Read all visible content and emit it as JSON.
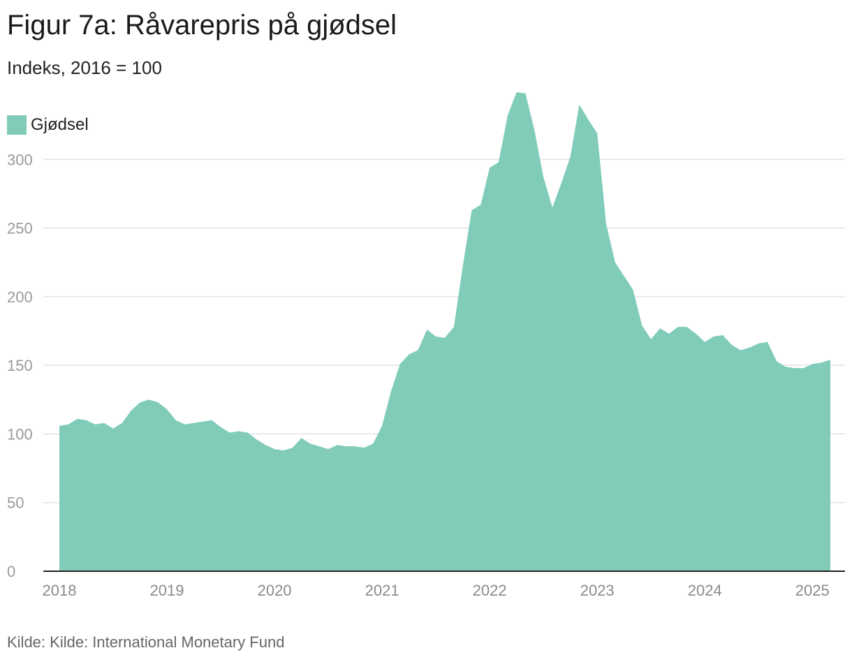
{
  "title": "Figur 7a: Råvarepris på gjødsel",
  "subtitle": "Indeks, 2016 = 100",
  "source": "Kilde: Kilde: International Monetary Fund",
  "colors": {
    "area": "#81ccb9",
    "grid": "#e2e2e2",
    "axis": "#222222",
    "tick": "#9a9a9a"
  },
  "chart_data": {
    "type": "area",
    "title": "Figur 7a: Råvarepris på gjødsel",
    "subtitle": "Indeks, 2016 = 100",
    "xlabel": "",
    "ylabel": "",
    "ylim": [
      0,
      350
    ],
    "yticks": [
      0,
      50,
      100,
      150,
      200,
      250,
      300
    ],
    "ytick_labels": [
      "0",
      "50",
      "100",
      "150",
      "200",
      "250",
      "300"
    ],
    "xlim": [
      2018.0,
      2025.33
    ],
    "xticks": [
      2018,
      2019,
      2020,
      2021,
      2022,
      2023,
      2024,
      2025
    ],
    "xtick_labels": [
      "2018",
      "2019",
      "2020",
      "2021",
      "2022",
      "2023",
      "2024",
      "2025"
    ],
    "grid": true,
    "legend_position": "top-left",
    "series": [
      {
        "name": "Gjødsel",
        "x": [
          2018.0,
          2018.083,
          2018.167,
          2018.25,
          2018.333,
          2018.417,
          2018.5,
          2018.583,
          2018.667,
          2018.75,
          2018.833,
          2018.917,
          2019.0,
          2019.083,
          2019.167,
          2019.25,
          2019.333,
          2019.417,
          2019.5,
          2019.583,
          2019.667,
          2019.75,
          2019.833,
          2019.917,
          2020.0,
          2020.083,
          2020.167,
          2020.25,
          2020.333,
          2020.417,
          2020.5,
          2020.583,
          2020.667,
          2020.75,
          2020.833,
          2020.917,
          2021.0,
          2021.083,
          2021.167,
          2021.25,
          2021.333,
          2021.417,
          2021.5,
          2021.583,
          2021.667,
          2021.75,
          2021.833,
          2021.917,
          2022.0,
          2022.083,
          2022.167,
          2022.25,
          2022.333,
          2022.417,
          2022.5,
          2022.583,
          2022.667,
          2022.75,
          2022.833,
          2022.917,
          2023.0,
          2023.083,
          2023.167,
          2023.25,
          2023.333,
          2023.417,
          2023.5,
          2023.583,
          2023.667,
          2023.75,
          2023.833,
          2023.917,
          2024.0,
          2024.083,
          2024.167,
          2024.25,
          2024.333,
          2024.417,
          2024.5,
          2024.583,
          2024.667,
          2024.75,
          2024.833,
          2024.917,
          2025.0,
          2025.083,
          2025.167
        ],
        "values": [
          106,
          107,
          111,
          110,
          107,
          108,
          104,
          108,
          117,
          123,
          125,
          123,
          118,
          110,
          107,
          108,
          109,
          110,
          105,
          101,
          102,
          101,
          96,
          92,
          89,
          88,
          90,
          97,
          93,
          91,
          89,
          92,
          91,
          91,
          90,
          93,
          106,
          131,
          151,
          158,
          161,
          176,
          171,
          170,
          178,
          222,
          263,
          267,
          294,
          298,
          332,
          349,
          348,
          321,
          287,
          265,
          283,
          302,
          340,
          329,
          319,
          253,
          225,
          215,
          205,
          179,
          169,
          177,
          173,
          178,
          178,
          173,
          167,
          171,
          172,
          165,
          161,
          163,
          166,
          167,
          153,
          149,
          148,
          148,
          151,
          152,
          154
        ]
      }
    ]
  }
}
